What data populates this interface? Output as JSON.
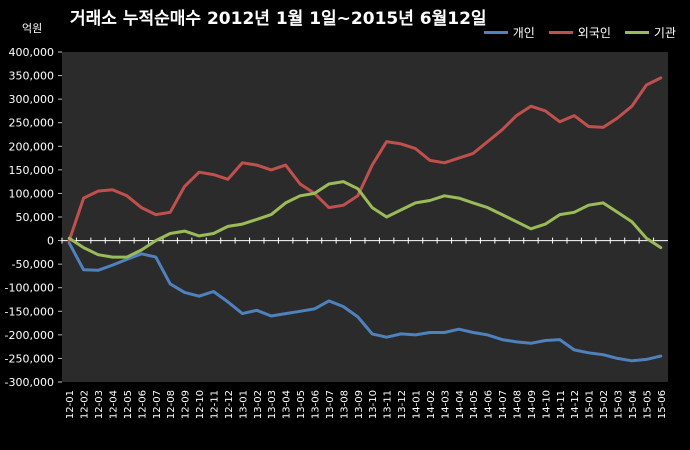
{
  "chart_data": {
    "type": "line",
    "title": "거래소  누적순매수 2012년 1월 1일~2015년 6월12일",
    "ylabel": "억원",
    "xlabel": "",
    "ylim": [
      -300000,
      400000
    ],
    "yticks": [
      400000,
      350000,
      300000,
      250000,
      200000,
      150000,
      100000,
      50000,
      0,
      -50000,
      -100000,
      -150000,
      -200000,
      -250000,
      -300000
    ],
    "ytick_labels": [
      "400,000",
      "350,000",
      "300,000",
      "250,000",
      "200,000",
      "150,000",
      "100,000",
      "50,000",
      "0",
      "-50,000",
      "-100,000",
      "-150,000",
      "-200,000",
      "-250,000",
      "-300,000"
    ],
    "categories": [
      "12-01",
      "12-02",
      "12-03",
      "12-04",
      "12-05",
      "12-06",
      "12-07",
      "12-08",
      "12-09",
      "12-10",
      "12-11",
      "12-12",
      "13-01",
      "13-02",
      "13-03",
      "13-04",
      "13-05",
      "13-06",
      "13-07",
      "13-08",
      "13-09",
      "13-10",
      "13-11",
      "13-12",
      "14-01",
      "14-02",
      "14-03",
      "14-04",
      "14-05",
      "14-06",
      "14-07",
      "14-08",
      "14-09",
      "14-10",
      "14-11",
      "14-12",
      "15-01",
      "15-02",
      "15-03",
      "15-04",
      "15-05",
      "15-06"
    ],
    "grid": false,
    "legend_position": "top-right",
    "series": [
      {
        "name": "개인",
        "color": "#4f81bd",
        "values": [
          -5000,
          -62000,
          -63000,
          -52000,
          -40000,
          -28000,
          -35000,
          -92000,
          -110000,
          -118000,
          -108000,
          -130000,
          -155000,
          -148000,
          -160000,
          -155000,
          -150000,
          -145000,
          -128000,
          -140000,
          -162000,
          -198000,
          -205000,
          -198000,
          -200000,
          -195000,
          -195000,
          -188000,
          -195000,
          -200000,
          -210000,
          -215000,
          -218000,
          -212000,
          -210000,
          -232000,
          -238000,
          -242000,
          -250000,
          -255000,
          -252000,
          -245000
        ]
      },
      {
        "name": "외국인",
        "color": "#c0504d",
        "values": [
          0,
          90000,
          105000,
          108000,
          95000,
          70000,
          55000,
          60000,
          115000,
          145000,
          140000,
          130000,
          165000,
          160000,
          150000,
          160000,
          120000,
          100000,
          70000,
          75000,
          95000,
          160000,
          210000,
          205000,
          195000,
          170000,
          165000,
          175000,
          185000,
          210000,
          235000,
          265000,
          285000,
          275000,
          252000,
          265000,
          242000,
          240000,
          260000,
          285000,
          330000,
          345000
        ]
      },
      {
        "name": "기관",
        "color": "#9bbb59",
        "values": [
          5000,
          -15000,
          -30000,
          -35000,
          -35000,
          -20000,
          0,
          15000,
          20000,
          10000,
          15000,
          30000,
          35000,
          45000,
          55000,
          80000,
          95000,
          100000,
          120000,
          125000,
          110000,
          70000,
          50000,
          65000,
          80000,
          85000,
          95000,
          90000,
          80000,
          70000,
          55000,
          40000,
          25000,
          35000,
          55000,
          60000,
          75000,
          80000,
          60000,
          40000,
          5000,
          -15000
        ]
      }
    ]
  }
}
